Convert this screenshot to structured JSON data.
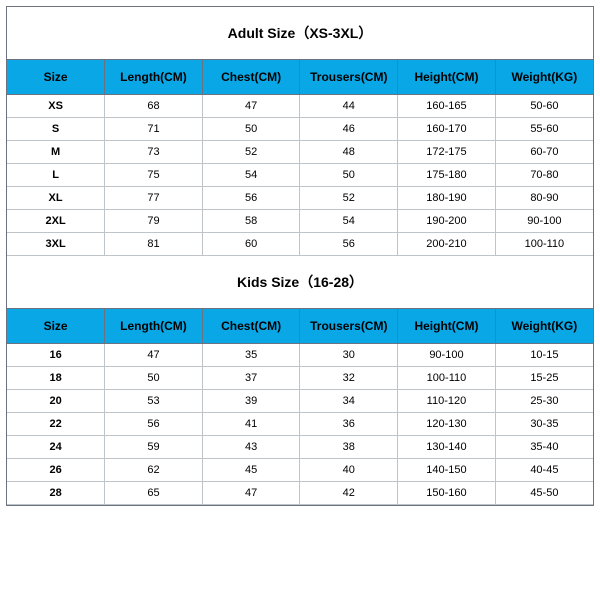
{
  "theme": {
    "header_bg": "#0aa7e6",
    "outer_border": "#6b7280",
    "cell_border": "#bfc4c9",
    "text_color": "#000000",
    "title_fontsize": 14,
    "header_fontsize": 12,
    "body_fontsize": 11
  },
  "sections": [
    {
      "title": "Adult Size（XS-3XL）",
      "columns": [
        "Size",
        "Length(CM)",
        "Chest(CM)",
        "Trousers(CM)",
        "Height(CM)",
        "Weight(KG)"
      ],
      "rows": [
        [
          "XS",
          "68",
          "47",
          "44",
          "160-165",
          "50-60"
        ],
        [
          "S",
          "71",
          "50",
          "46",
          "160-170",
          "55-60"
        ],
        [
          "M",
          "73",
          "52",
          "48",
          "172-175",
          "60-70"
        ],
        [
          "L",
          "75",
          "54",
          "50",
          "175-180",
          "70-80"
        ],
        [
          "XL",
          "77",
          "56",
          "52",
          "180-190",
          "80-90"
        ],
        [
          "2XL",
          "79",
          "58",
          "54",
          "190-200",
          "90-100"
        ],
        [
          "3XL",
          "81",
          "60",
          "56",
          "200-210",
          "100-110"
        ]
      ]
    },
    {
      "title": "Kids Size（16-28）",
      "columns": [
        "Size",
        "Length(CM)",
        "Chest(CM)",
        "Trousers(CM)",
        "Height(CM)",
        "Weight(KG)"
      ],
      "rows": [
        [
          "16",
          "47",
          "35",
          "30",
          "90-100",
          "10-15"
        ],
        [
          "18",
          "50",
          "37",
          "32",
          "100-110",
          "15-25"
        ],
        [
          "20",
          "53",
          "39",
          "34",
          "110-120",
          "25-30"
        ],
        [
          "22",
          "56",
          "41",
          "36",
          "120-130",
          "30-35"
        ],
        [
          "24",
          "59",
          "43",
          "38",
          "130-140",
          "35-40"
        ],
        [
          "26",
          "62",
          "45",
          "40",
          "140-150",
          "40-45"
        ],
        [
          "28",
          "65",
          "47",
          "42",
          "150-160",
          "45-50"
        ]
      ]
    }
  ]
}
